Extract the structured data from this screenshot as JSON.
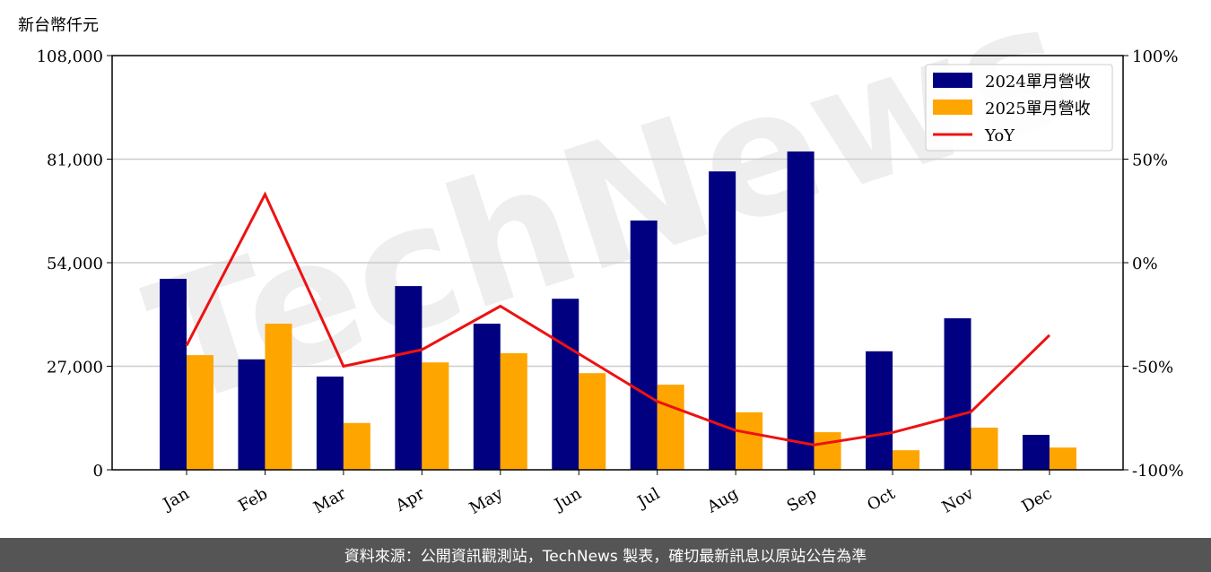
{
  "chart_data": {
    "type": "bar-line",
    "y_unit": "新台幣仟元",
    "watermark": "TechNews",
    "footer": "資料來源：公開資訊觀測站，TechNews 製表，確切最新訊息以原站公告為準",
    "categories": [
      "Jan",
      "Feb",
      "Mar",
      "Apr",
      "May",
      "Jun",
      "Jul",
      "Aug",
      "Sep",
      "Oct",
      "Nov",
      "Dec"
    ],
    "series": [
      {
        "name": "2024單月營收",
        "color": "#000080",
        "type": "bar",
        "values": [
          49800,
          28800,
          24300,
          47900,
          38100,
          44600,
          65000,
          77800,
          83000,
          30900,
          39500,
          9100
        ]
      },
      {
        "name": "2025單月營收",
        "color": "#ffa500",
        "type": "bar",
        "values": [
          29900,
          38100,
          12200,
          28000,
          30400,
          25200,
          22200,
          15000,
          9800,
          5100,
          11000,
          5800
        ]
      },
      {
        "name": "YoY",
        "color": "#ee1111",
        "type": "line",
        "axis": "y2",
        "values": [
          -40,
          33,
          -50,
          -42,
          -21,
          -44,
          -67,
          -81,
          -88,
          -82,
          -72,
          -35
        ]
      }
    ],
    "ylim": [
      0,
      108000
    ],
    "yticks": [
      0,
      {
        "value": 27000,
        "label": "27,000"
      },
      {
        "value": 54000,
        "label": "54,000"
      },
      {
        "value": 81000,
        "label": "81,000"
      },
      {
        "value": 108000,
        "label": "108,000"
      }
    ],
    "y2lim": [
      -100,
      100
    ],
    "y2ticks": [
      {
        "value": -100,
        "label": "-100%"
      },
      {
        "value": -50,
        "label": "-50%"
      },
      {
        "value": 0,
        "label": "0%"
      },
      {
        "value": 50,
        "label": "50%"
      },
      {
        "value": 100,
        "label": "100%"
      }
    ],
    "grid": true,
    "legend": "upper-right"
  }
}
